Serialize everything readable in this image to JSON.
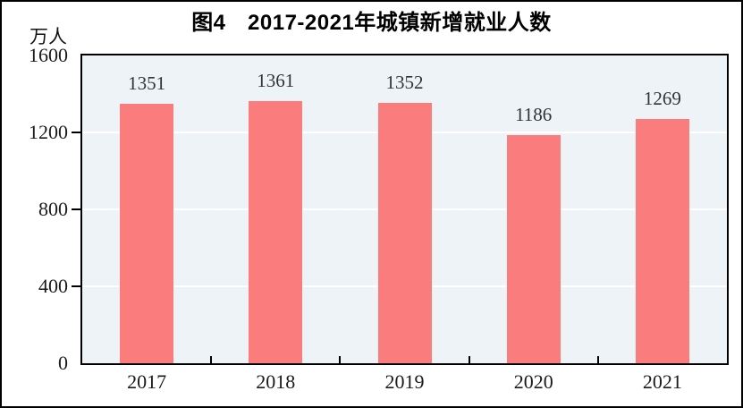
{
  "header": {
    "title": "图4　2017-2021年城镇新增就业人数",
    "unit_label": "万人"
  },
  "chart_data": {
    "type": "bar",
    "title": "图4　2017-2021年城镇新增就业人数",
    "ylabel": "万人",
    "xlabel": "",
    "categories": [
      "2017",
      "2018",
      "2019",
      "2020",
      "2021"
    ],
    "values": [
      1351,
      1361,
      1352,
      1186,
      1269
    ],
    "value_labels": [
      "1351",
      "1361",
      "1352",
      "1186",
      "1269"
    ],
    "ylim": [
      0,
      1600
    ],
    "yticks": [
      0,
      400,
      800,
      1200,
      1600
    ],
    "ytick_labels": [
      "0",
      "400",
      "800",
      "1200",
      "1600"
    ],
    "gridline_values": [
      400,
      800,
      1200
    ],
    "grid": true,
    "legend_position": "none",
    "colors": {
      "bar": "#fa7c7c",
      "plot_background": "#edf3f7",
      "gridline": "#ffffff",
      "axis": "#000000",
      "value_label_text": "#333333",
      "tick_label_text": "#1a1a1a",
      "title_text": "#000000"
    }
  }
}
